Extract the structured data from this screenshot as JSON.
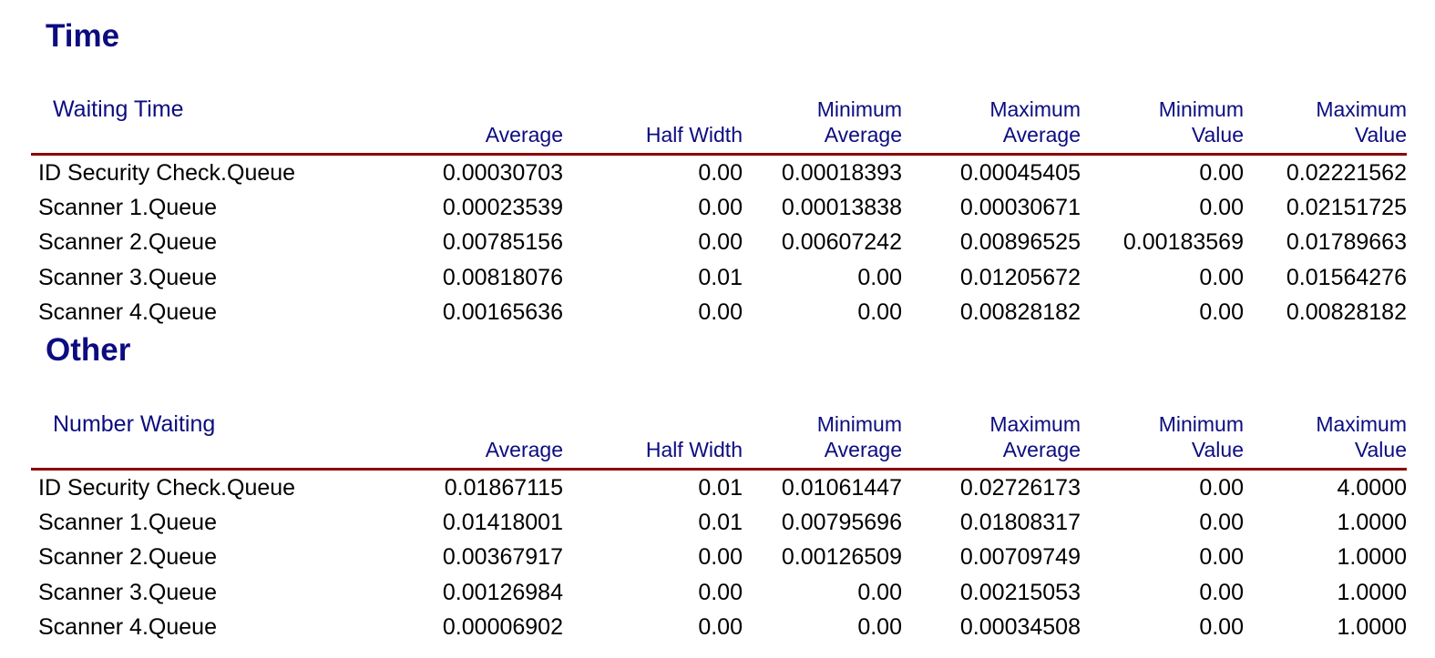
{
  "colors": {
    "heading": "#0c0c80",
    "rule": "#8b0000",
    "text": "#000000"
  },
  "sections": [
    {
      "title": "Time",
      "table_title": "Waiting Time",
      "columns": [
        [
          "Average"
        ],
        [
          "Half Width"
        ],
        [
          "Minimum",
          "Average"
        ],
        [
          "Maximum",
          "Average"
        ],
        [
          "Minimum",
          "Value"
        ],
        [
          "Maximum",
          "Value"
        ]
      ],
      "rows": [
        {
          "label": "ID Security Check.Queue",
          "values": [
            "0.00030703",
            "0.00",
            "0.00018393",
            "0.00045405",
            "0.00",
            "0.02221562"
          ]
        },
        {
          "label": "Scanner 1.Queue",
          "values": [
            "0.00023539",
            "0.00",
            "0.00013838",
            "0.00030671",
            "0.00",
            "0.02151725"
          ]
        },
        {
          "label": "Scanner 2.Queue",
          "values": [
            "0.00785156",
            "0.00",
            "0.00607242",
            "0.00896525",
            "0.00183569",
            "0.01789663"
          ]
        },
        {
          "label": "Scanner 3.Queue",
          "values": [
            "0.00818076",
            "0.01",
            "0.00",
            "0.01205672",
            "0.00",
            "0.01564276"
          ]
        },
        {
          "label": "Scanner 4.Queue",
          "values": [
            "0.00165636",
            "0.00",
            "0.00",
            "0.00828182",
            "0.00",
            "0.00828182"
          ]
        }
      ]
    },
    {
      "title": "Other",
      "table_title": "Number Waiting",
      "columns": [
        [
          "Average"
        ],
        [
          "Half Width"
        ],
        [
          "Minimum",
          "Average"
        ],
        [
          "Maximum",
          "Average"
        ],
        [
          "Minimum",
          "Value"
        ],
        [
          "Maximum",
          "Value"
        ]
      ],
      "rows": [
        {
          "label": "ID Security Check.Queue",
          "values": [
            "0.01867115",
            "0.01",
            "0.01061447",
            "0.02726173",
            "0.00",
            "4.0000"
          ]
        },
        {
          "label": "Scanner 1.Queue",
          "values": [
            "0.01418001",
            "0.01",
            "0.00795696",
            "0.01808317",
            "0.00",
            "1.0000"
          ]
        },
        {
          "label": "Scanner 2.Queue",
          "values": [
            "0.00367917",
            "0.00",
            "0.00126509",
            "0.00709749",
            "0.00",
            "1.0000"
          ]
        },
        {
          "label": "Scanner 3.Queue",
          "values": [
            "0.00126984",
            "0.00",
            "0.00",
            "0.00215053",
            "0.00",
            "1.0000"
          ]
        },
        {
          "label": "Scanner 4.Queue",
          "values": [
            "0.00006902",
            "0.00",
            "0.00",
            "0.00034508",
            "0.00",
            "1.0000"
          ]
        }
      ]
    }
  ]
}
